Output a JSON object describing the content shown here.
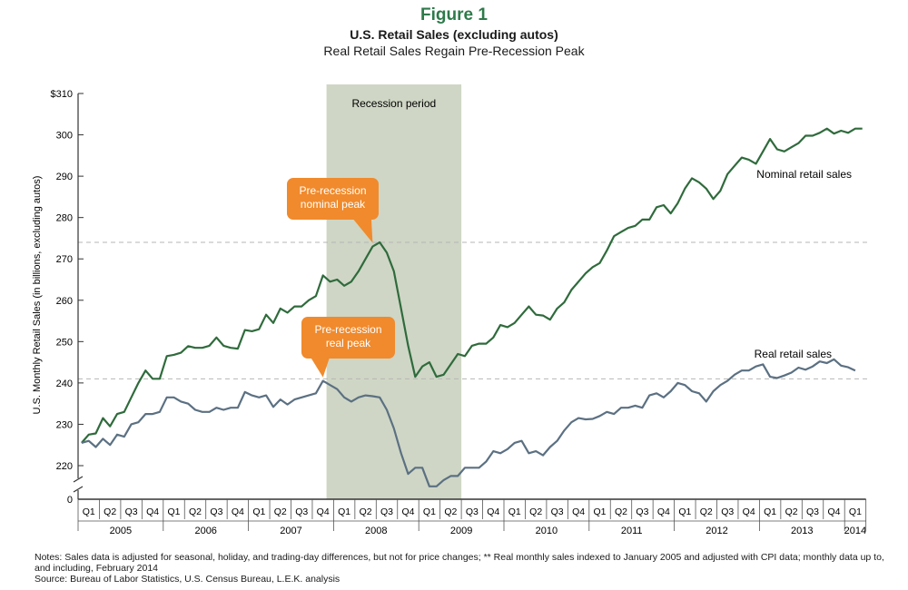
{
  "figure_label": "Figure 1",
  "title": "U.S. Retail Sales (excluding autos)",
  "subtitle": "Real Retail Sales Regain Pre-Recession Peak",
  "colors": {
    "nominal": "#2f6b3c",
    "real": "#5b7082",
    "recession": "#cfd6c5",
    "callout": "#f08a2c",
    "title_green": "#2e7a4a"
  },
  "notes": [
    "Notes: Sales data is adjusted for seasonal, holiday, and trading-day differences, but not for price changes; ** Real monthly sales indexed to January 2005 and adjusted with CPI data; monthly data up to, and including, February 2014",
    "Source: Bureau of Labor Statistics, U.S. Census Bureau, L.E.K. analysis"
  ],
  "chart_data": {
    "type": "line",
    "ylabel": "U.S. Monthly Retail Sales (in billions, excluding autos)",
    "ylim": [
      215,
      310
    ],
    "y_ticks": [
      {
        "value": 310,
        "label": "$310"
      },
      {
        "value": 300,
        "label": "300"
      },
      {
        "value": 290,
        "label": "290"
      },
      {
        "value": 280,
        "label": "280"
      },
      {
        "value": 270,
        "label": "270"
      },
      {
        "value": 260,
        "label": "260"
      },
      {
        "value": 250,
        "label": "250"
      },
      {
        "value": 240,
        "label": "240"
      },
      {
        "value": 230,
        "label": "230"
      },
      {
        "value": 220,
        "label": "220"
      }
    ],
    "y_zero_label": "0",
    "x_start": "2005-01",
    "x_end": "2014-02",
    "quarter_labels": [
      "Q1",
      "Q2",
      "Q3",
      "Q4",
      "Q1",
      "Q2",
      "Q3",
      "Q4",
      "Q1",
      "Q2",
      "Q3",
      "Q4",
      "Q1",
      "Q2",
      "Q3",
      "Q4",
      "Q1",
      "Q2",
      "Q3",
      "Q4",
      "Q1",
      "Q2",
      "Q3",
      "Q4",
      "Q1",
      "Q2",
      "Q3",
      "Q4",
      "Q1",
      "Q2",
      "Q3",
      "Q4",
      "Q1",
      "Q2",
      "Q3",
      "Q4",
      "Q1"
    ],
    "year_labels": [
      "2005",
      "2006",
      "2007",
      "2008",
      "2009",
      "2010",
      "2011",
      "2012",
      "2013",
      "2014"
    ],
    "recession": {
      "label": "Recession period",
      "start": "2007-12",
      "end": "2009-06"
    },
    "reference_lines": [
      274,
      241
    ],
    "series": [
      {
        "name": "Nominal retail sales",
        "values": [
          225.5,
          227.5,
          227.8,
          231.5,
          229.5,
          232.5,
          233,
          236.5,
          240,
          243,
          241,
          241,
          246.5,
          246.8,
          247.3,
          248.9,
          248.5,
          248.5,
          249,
          251,
          249,
          248.5,
          248.3,
          252.8,
          252.5,
          253,
          256.5,
          254.5,
          258,
          257,
          258.5,
          258.5,
          260,
          261,
          266,
          264.5,
          265,
          263.5,
          264.5,
          267,
          270,
          273,
          274,
          271.5,
          267,
          258,
          249,
          241.5,
          244,
          245,
          241.5,
          242,
          244.5,
          247,
          246.5,
          249,
          249.5,
          249.5,
          251,
          254,
          253.5,
          254.5,
          256.5,
          258.5,
          256.5,
          256.3,
          255.3,
          258,
          259.5,
          262.5,
          264.5,
          266.5,
          268,
          269,
          272,
          275.5,
          276.5,
          277.5,
          278,
          279.5,
          279.5,
          282.5,
          283,
          281,
          283.5,
          287,
          289.5,
          288.5,
          287,
          284.5,
          286.5,
          290.5,
          292.5,
          294.5,
          294,
          293,
          296,
          299,
          296.5,
          296,
          297,
          298,
          299.8,
          299.8,
          300.5,
          301.5,
          300.3,
          301,
          300.5,
          301.5,
          301.5
        ]
      },
      {
        "name": "Real retail sales",
        "values": [
          225.5,
          226,
          224.5,
          226.5,
          225,
          227.5,
          227,
          230,
          230.5,
          232.5,
          232.5,
          233,
          236.5,
          236.5,
          235.5,
          235,
          233.5,
          233,
          233,
          234,
          233.5,
          234,
          234,
          237.8,
          237,
          236.5,
          237,
          234.2,
          236,
          234.8,
          236,
          236.5,
          237,
          237.5,
          240.5,
          239.5,
          238.5,
          236.5,
          235.5,
          236.5,
          237,
          236.8,
          236.5,
          233.5,
          229,
          223,
          218,
          219.5,
          219.5,
          215,
          215,
          216.5,
          217.5,
          217.5,
          219.5,
          219.5,
          219.5,
          221,
          223.5,
          223,
          224,
          225.5,
          226,
          223,
          223.5,
          222.5,
          224.5,
          226,
          228.5,
          230.5,
          231.5,
          231.2,
          231.3,
          232,
          233,
          232.5,
          234,
          234,
          234.5,
          234,
          237,
          237.5,
          236.5,
          238,
          240,
          239.5,
          238,
          237.5,
          235.5,
          238,
          239.5,
          240.5,
          242,
          243,
          243,
          244,
          244.5,
          241.5,
          241.2,
          241.8,
          242.5,
          243.7,
          243.2,
          244,
          245.2,
          244.8,
          245.7,
          244.2,
          243.8,
          243
        ]
      }
    ],
    "annotations": [
      {
        "text": [
          "Pre-recession",
          "nominal peak"
        ],
        "target": "2008-06",
        "series": 0
      },
      {
        "text": [
          "Pre-recession",
          "real peak"
        ],
        "target": "2007-11",
        "series": 1
      }
    ]
  }
}
